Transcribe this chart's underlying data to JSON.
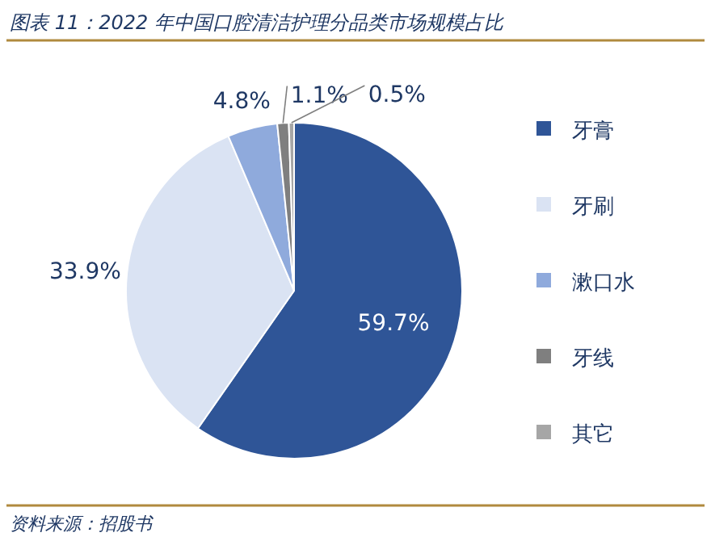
{
  "chart_data": {
    "type": "pie",
    "title": "图表 11：2022 年中国口腔清洁护理分品类市场规模占比",
    "categories": [
      "牙膏",
      "牙刷",
      "漱口水",
      "牙线",
      "其它"
    ],
    "values": [
      59.7,
      33.9,
      4.8,
      1.1,
      0.5
    ],
    "value_labels": [
      "59.7%",
      "33.9%",
      "4.8%",
      "1.1%",
      "0.5%"
    ],
    "colors": [
      "#2f5597",
      "#dae3f3",
      "#8faadc",
      "#7f7f7f",
      "#a6a6a6"
    ],
    "legend": "right",
    "annotations": [
      "资料来源：招股书"
    ]
  }
}
